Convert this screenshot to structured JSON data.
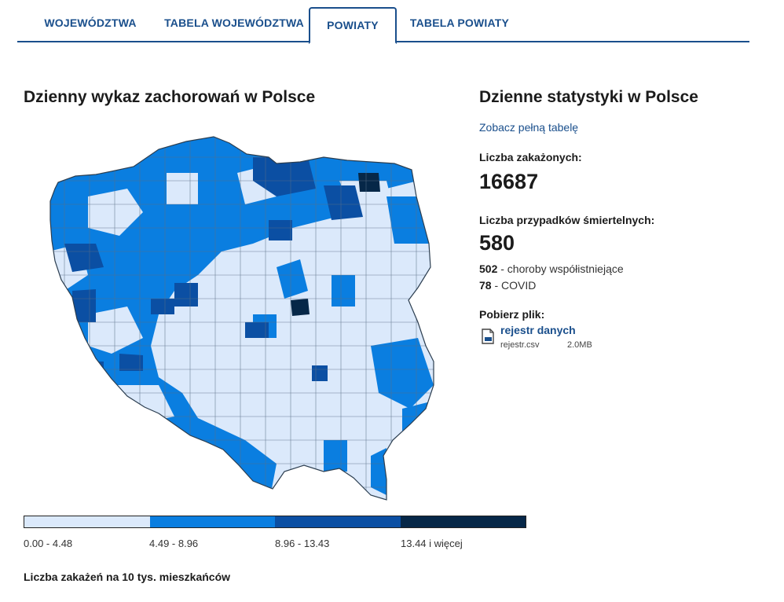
{
  "tabs": [
    {
      "label": "WOJEWÓDZTWA",
      "active": false
    },
    {
      "label": "TABELA WOJEWÓDZTWA",
      "active": false
    },
    {
      "label": "POWIATY",
      "active": true
    },
    {
      "label": "TABELA POWIATY",
      "active": false
    }
  ],
  "map_section": {
    "title": "Dzienny wykaz zachorowań w Polsce",
    "legend": [
      {
        "label": "0.00 - 4.48",
        "color": "#dbe9fb"
      },
      {
        "label": "4.49 - 8.96",
        "color": "#0a7ee0"
      },
      {
        "label": "8.96 - 13.43",
        "color": "#0b4fa3"
      },
      {
        "label": "13.44 i więcej",
        "color": "#062748"
      }
    ],
    "note": "Liczba zakażeń na 10 tys. mieszkańców"
  },
  "stats": {
    "title": "Dzienne statystyki w Polsce",
    "full_table_link": "Zobacz pełną tabelę",
    "infected_label": "Liczba zakażonych:",
    "infected_value": "16687",
    "deaths_label": "Liczba przypadków śmiertelnych:",
    "deaths_value": "580",
    "deaths_breakdown": [
      {
        "value": "502",
        "text": " - choroby współistniejące"
      },
      {
        "value": "78",
        "text": " - COVID"
      }
    ],
    "download_label": "Pobierz plik:",
    "file": {
      "link": "rejestr danych",
      "name": "rejestr.csv",
      "size": "2.0MB"
    }
  }
}
